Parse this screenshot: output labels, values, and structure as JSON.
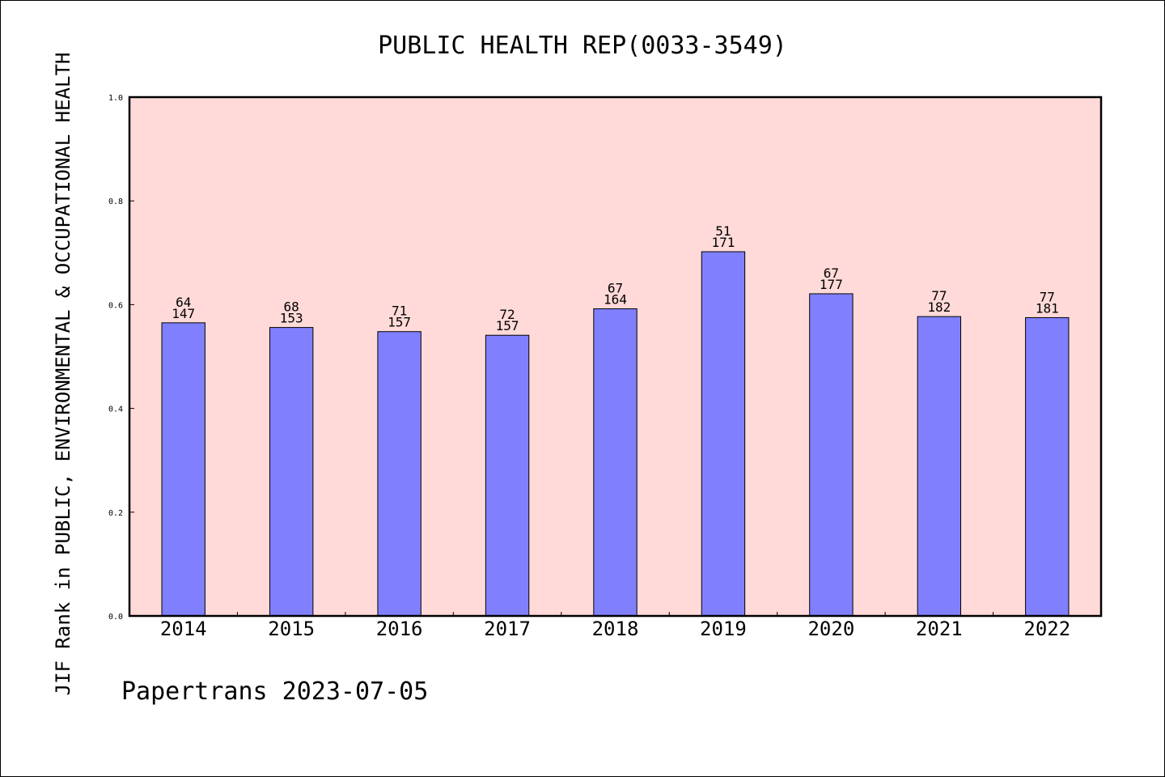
{
  "chart_data": {
    "type": "bar",
    "title": "PUBLIC HEALTH REP(0033-3549)",
    "ylabel": "JIF Rank in PUBLIC, ENVIRONMENTAL & OCCUPATIONAL HEALTH",
    "xlabel": "",
    "ylim": [
      0,
      1.0
    ],
    "yticks": [
      "0.0",
      "0.2",
      "0.4",
      "0.6",
      "0.8",
      "1.0"
    ],
    "categories": [
      "2014",
      "2015",
      "2016",
      "2017",
      "2018",
      "2019",
      "2020",
      "2021",
      "2022"
    ],
    "values": [
      0.565,
      0.556,
      0.548,
      0.541,
      0.592,
      0.702,
      0.621,
      0.577,
      0.575
    ],
    "rank": [
      "64",
      "68",
      "71",
      "72",
      "67",
      "51",
      "67",
      "77",
      "77"
    ],
    "total": [
      "147",
      "153",
      "157",
      "157",
      "164",
      "171",
      "177",
      "182",
      "181"
    ],
    "grid": false,
    "legend": "none",
    "colors": {
      "plot_background": "#FFDAD8",
      "bar_fill": "#8080FF",
      "bar_edge": "#000000"
    }
  },
  "footer": {
    "text": "Papertrans 2023-07-05"
  }
}
